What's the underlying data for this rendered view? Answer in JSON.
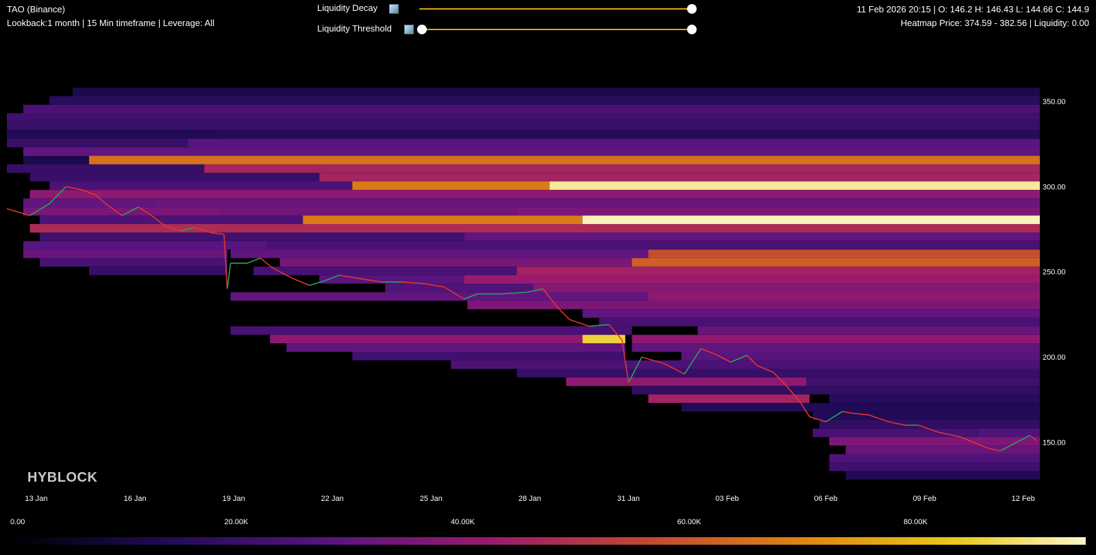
{
  "header": {
    "symbol": "TAO (Binance)",
    "settings": "Lookback:1 month | 15 Min timeframe | Leverage: All",
    "ohlc": "11 Feb 2026 20:15 | O: 146.2 H: 146.43 L: 144.66 C: 144.9",
    "heatmap_info": "Heatmap Price: 374.59 - 382.56 | Liquidity: 0.00"
  },
  "controls": {
    "decay_label": "Liquidity Decay",
    "threshold_label": "Liquidity Threshold",
    "decay_value": 1.0,
    "threshold_min": 0.0,
    "threshold_max": 1.0
  },
  "watermark": "HYBLOCK",
  "colors": {
    "background": "#000000",
    "slider": "#e0a020",
    "candle_up": "#26a65b",
    "candle_down": "#e0362c",
    "palette": [
      "#000000",
      "#1e0b55",
      "#5a1480",
      "#9c1a6e",
      "#c44a30",
      "#e08a10",
      "#eac81a",
      "#fdf5c8"
    ]
  },
  "chart_data": {
    "type": "heatmap",
    "title": "",
    "x_ticks": [
      "13 Jan",
      "16 Jan",
      "19 Jan",
      "22 Jan",
      "25 Jan",
      "28 Jan",
      "31 Jan",
      "03 Feb",
      "06 Feb",
      "09 Feb",
      "12 Feb"
    ],
    "x_range_days": [
      12.5,
      43.9
    ],
    "y_ticks": [
      "350.00",
      "300.00",
      "250.00",
      "200.00",
      "150.00"
    ],
    "y_range": [
      120,
      358
    ],
    "colorbar": {
      "labels": [
        "0.00",
        "20.00K",
        "40.00K",
        "60.00K",
        "80.00K"
      ],
      "range": [
        0,
        95000
      ]
    },
    "price_series_days_close": [
      [
        12.5,
        287
      ],
      [
        13.2,
        283
      ],
      [
        13.8,
        290
      ],
      [
        14.3,
        300
      ],
      [
        14.8,
        298
      ],
      [
        15.2,
        295
      ],
      [
        15.5,
        290
      ],
      [
        16.0,
        283
      ],
      [
        16.5,
        288
      ],
      [
        16.9,
        283
      ],
      [
        17.3,
        277
      ],
      [
        17.8,
        274
      ],
      [
        18.2,
        276
      ],
      [
        18.7,
        273
      ],
      [
        19.1,
        272
      ],
      [
        19.2,
        240
      ],
      [
        19.3,
        255
      ],
      [
        19.8,
        255
      ],
      [
        20.2,
        258
      ],
      [
        20.6,
        252
      ],
      [
        21.2,
        246
      ],
      [
        21.7,
        242
      ],
      [
        22.2,
        245
      ],
      [
        22.6,
        248
      ],
      [
        23.2,
        246
      ],
      [
        23.9,
        244
      ],
      [
        24.5,
        244
      ],
      [
        25.2,
        243
      ],
      [
        25.8,
        241
      ],
      [
        26.4,
        234
      ],
      [
        26.8,
        237
      ],
      [
        27.5,
        237
      ],
      [
        28.3,
        238
      ],
      [
        28.8,
        240
      ],
      [
        29.2,
        230
      ],
      [
        29.6,
        222
      ],
      [
        30.2,
        218
      ],
      [
        30.8,
        219
      ],
      [
        31.2,
        210
      ],
      [
        31.4,
        185
      ],
      [
        31.8,
        200
      ],
      [
        32.5,
        196
      ],
      [
        33.1,
        190
      ],
      [
        33.4,
        199
      ],
      [
        33.6,
        205
      ],
      [
        34.1,
        201
      ],
      [
        34.5,
        197
      ],
      [
        35.0,
        201
      ],
      [
        35.3,
        195
      ],
      [
        35.8,
        191
      ],
      [
        36.2,
        183
      ],
      [
        36.6,
        174
      ],
      [
        36.9,
        165
      ],
      [
        37.4,
        162
      ],
      [
        37.9,
        168
      ],
      [
        38.2,
        167
      ],
      [
        38.7,
        166
      ],
      [
        39.3,
        162
      ],
      [
        39.8,
        160
      ],
      [
        40.2,
        160
      ],
      [
        40.8,
        156
      ],
      [
        41.5,
        153
      ],
      [
        42.0,
        149
      ],
      [
        42.4,
        146
      ],
      [
        42.7,
        145
      ],
      [
        43.0,
        148
      ],
      [
        43.4,
        152
      ],
      [
        43.6,
        154
      ],
      [
        43.8,
        151
      ]
    ],
    "liquidity_bands": [
      {
        "price_range": [
          353,
          358
        ],
        "segments": [
          [
            14.5,
            43.9,
            12000
          ]
        ]
      },
      {
        "price_range": [
          348,
          353
        ],
        "segments": [
          [
            13.8,
            43.9,
            16000
          ]
        ]
      },
      {
        "price_range": [
          343,
          348
        ],
        "segments": [
          [
            13.0,
            43.9,
            25000
          ]
        ]
      },
      {
        "price_range": [
          338,
          343
        ],
        "segments": [
          [
            12.5,
            43.9,
            22000
          ]
        ]
      },
      {
        "price_range": [
          333,
          338
        ],
        "segments": [
          [
            12.5,
            43.9,
            20000
          ]
        ]
      },
      {
        "price_range": [
          328,
          333
        ],
        "segments": [
          [
            12.5,
            19.0,
            14000
          ],
          [
            19.0,
            43.9,
            15000
          ]
        ]
      },
      {
        "price_range": [
          323,
          328
        ],
        "segments": [
          [
            12.5,
            18.0,
            20000
          ],
          [
            18.0,
            43.9,
            28000
          ]
        ]
      },
      {
        "price_range": [
          318,
          323
        ],
        "segments": [
          [
            13.0,
            43.9,
            30000
          ]
        ]
      },
      {
        "price_range": [
          313,
          318
        ],
        "segments": [
          [
            13.0,
            15.0,
            12000
          ],
          [
            15.0,
            43.9,
            66000
          ]
        ]
      },
      {
        "price_range": [
          308,
          313
        ],
        "segments": [
          [
            12.5,
            18.5,
            20000
          ],
          [
            18.5,
            43.9,
            46000
          ]
        ]
      },
      {
        "price_range": [
          303,
          308
        ],
        "segments": [
          [
            13.2,
            22.0,
            20000
          ],
          [
            22.0,
            43.9,
            46000
          ]
        ]
      },
      {
        "price_range": [
          298,
          303
        ],
        "segments": [
          [
            13.8,
            23.0,
            25000
          ],
          [
            23.0,
            29.0,
            68000
          ],
          [
            29.0,
            43.9,
            92000
          ]
        ]
      },
      {
        "price_range": [
          293,
          298
        ],
        "segments": [
          [
            13.2,
            43.9,
            40000
          ]
        ]
      },
      {
        "price_range": [
          288,
          293
        ],
        "segments": [
          [
            13.0,
            17.0,
            30000
          ],
          [
            17.0,
            43.9,
            32000
          ]
        ]
      },
      {
        "price_range": [
          283,
          288
        ],
        "segments": [
          [
            13.0,
            19.0,
            35000
          ],
          [
            19.0,
            28.0,
            34000
          ],
          [
            28.0,
            43.9,
            36000
          ]
        ]
      },
      {
        "price_range": [
          278,
          283
        ],
        "segments": [
          [
            13.5,
            21.5,
            25000
          ],
          [
            21.5,
            30.0,
            68000
          ],
          [
            30.0,
            43.9,
            94000
          ]
        ]
      },
      {
        "price_range": [
          273,
          278
        ],
        "segments": [
          [
            13.2,
            43.9,
            48000
          ]
        ]
      },
      {
        "price_range": [
          268,
          273
        ],
        "segments": [
          [
            13.5,
            26.4,
            22000
          ],
          [
            26.4,
            43.9,
            30000
          ]
        ]
      },
      {
        "price_range": [
          263,
          268
        ],
        "segments": [
          [
            13.0,
            20.4,
            28000
          ],
          [
            20.4,
            43.9,
            24000
          ]
        ]
      },
      {
        "price_range": [
          258,
          263
        ],
        "segments": [
          [
            13.0,
            19.2,
            32000
          ],
          [
            19.3,
            32.0,
            30000
          ],
          [
            32.0,
            43.9,
            58000
          ]
        ]
      },
      {
        "price_range": [
          253,
          258
        ],
        "segments": [
          [
            13.5,
            19.2,
            24000
          ],
          [
            20.8,
            31.5,
            35000
          ],
          [
            31.5,
            43.9,
            62000
          ]
        ]
      },
      {
        "price_range": [
          248,
          253
        ],
        "segments": [
          [
            15.0,
            19.2,
            20000
          ],
          [
            20.0,
            28.0,
            24000
          ],
          [
            28.0,
            43.9,
            45000
          ]
        ]
      },
      {
        "price_range": [
          243,
          248
        ],
        "segments": [
          [
            22.0,
            26.4,
            28000
          ],
          [
            26.4,
            43.9,
            42000
          ]
        ]
      },
      {
        "price_range": [
          238,
          243
        ],
        "segments": [
          [
            24.0,
            28.5,
            26000
          ],
          [
            28.5,
            43.9,
            38000
          ]
        ]
      },
      {
        "price_range": [
          233,
          238
        ],
        "segments": [
          [
            19.3,
            32.0,
            30000
          ],
          [
            32.0,
            43.9,
            40000
          ]
        ]
      },
      {
        "price_range": [
          228,
          233
        ],
        "segments": [
          [
            26.5,
            43.9,
            36000
          ]
        ]
      },
      {
        "price_range": [
          223,
          228
        ],
        "segments": [
          [
            30.0,
            43.9,
            30000
          ]
        ]
      },
      {
        "price_range": [
          218,
          223
        ],
        "segments": [
          [
            30.5,
            43.9,
            24000
          ]
        ]
      },
      {
        "price_range": [
          213,
          218
        ],
        "segments": [
          [
            19.3,
            31.5,
            24000
          ],
          [
            33.5,
            43.9,
            32000
          ]
        ]
      },
      {
        "price_range": [
          208,
          213
        ],
        "segments": [
          [
            20.5,
            30.0,
            40000
          ],
          [
            30.0,
            31.3,
            86000
          ],
          [
            31.5,
            43.9,
            40000
          ]
        ]
      },
      {
        "price_range": [
          203,
          208
        ],
        "segments": [
          [
            21.0,
            31.3,
            30000
          ],
          [
            31.5,
            43.9,
            30000
          ]
        ]
      },
      {
        "price_range": [
          198,
          203
        ],
        "segments": [
          [
            23.0,
            31.3,
            22000
          ],
          [
            33.0,
            43.9,
            28000
          ]
        ]
      },
      {
        "price_range": [
          193,
          198
        ],
        "segments": [
          [
            26.0,
            43.9,
            25000
          ]
        ]
      },
      {
        "price_range": [
          188,
          193
        ],
        "segments": [
          [
            28.0,
            43.9,
            20000
          ]
        ]
      },
      {
        "price_range": [
          183,
          188
        ],
        "segments": [
          [
            29.5,
            36.8,
            40000
          ],
          [
            36.8,
            43.9,
            22000
          ]
        ]
      },
      {
        "price_range": [
          178,
          183
        ],
        "segments": [
          [
            31.5,
            43.9,
            18000
          ]
        ]
      },
      {
        "price_range": [
          173,
          178
        ],
        "segments": [
          [
            32.0,
            36.9,
            45000
          ],
          [
            37.5,
            43.9,
            16000
          ]
        ]
      },
      {
        "price_range": [
          168,
          173
        ],
        "segments": [
          [
            33.0,
            43.9,
            14000
          ]
        ]
      },
      {
        "price_range": [
          163,
          168
        ],
        "segments": [
          [
            37.0,
            43.9,
            14000
          ]
        ]
      },
      {
        "price_range": [
          158,
          163
        ],
        "segments": [
          [
            37.2,
            43.9,
            18000
          ]
        ]
      },
      {
        "price_range": [
          153,
          158
        ],
        "segments": [
          [
            37.0,
            42.0,
            24000
          ],
          [
            42.0,
            43.9,
            26000
          ]
        ]
      },
      {
        "price_range": [
          148,
          153
        ],
        "segments": [
          [
            37.5,
            43.9,
            36000
          ]
        ]
      },
      {
        "price_range": [
          143,
          148
        ],
        "segments": [
          [
            38.0,
            43.9,
            32000
          ]
        ]
      },
      {
        "price_range": [
          138,
          143
        ],
        "segments": [
          [
            37.5,
            43.9,
            26000
          ]
        ]
      },
      {
        "price_range": [
          133,
          138
        ],
        "segments": [
          [
            37.5,
            43.9,
            22000
          ]
        ]
      },
      {
        "price_range": [
          128,
          133
        ],
        "segments": [
          [
            38.0,
            43.9,
            14000
          ]
        ]
      }
    ]
  }
}
